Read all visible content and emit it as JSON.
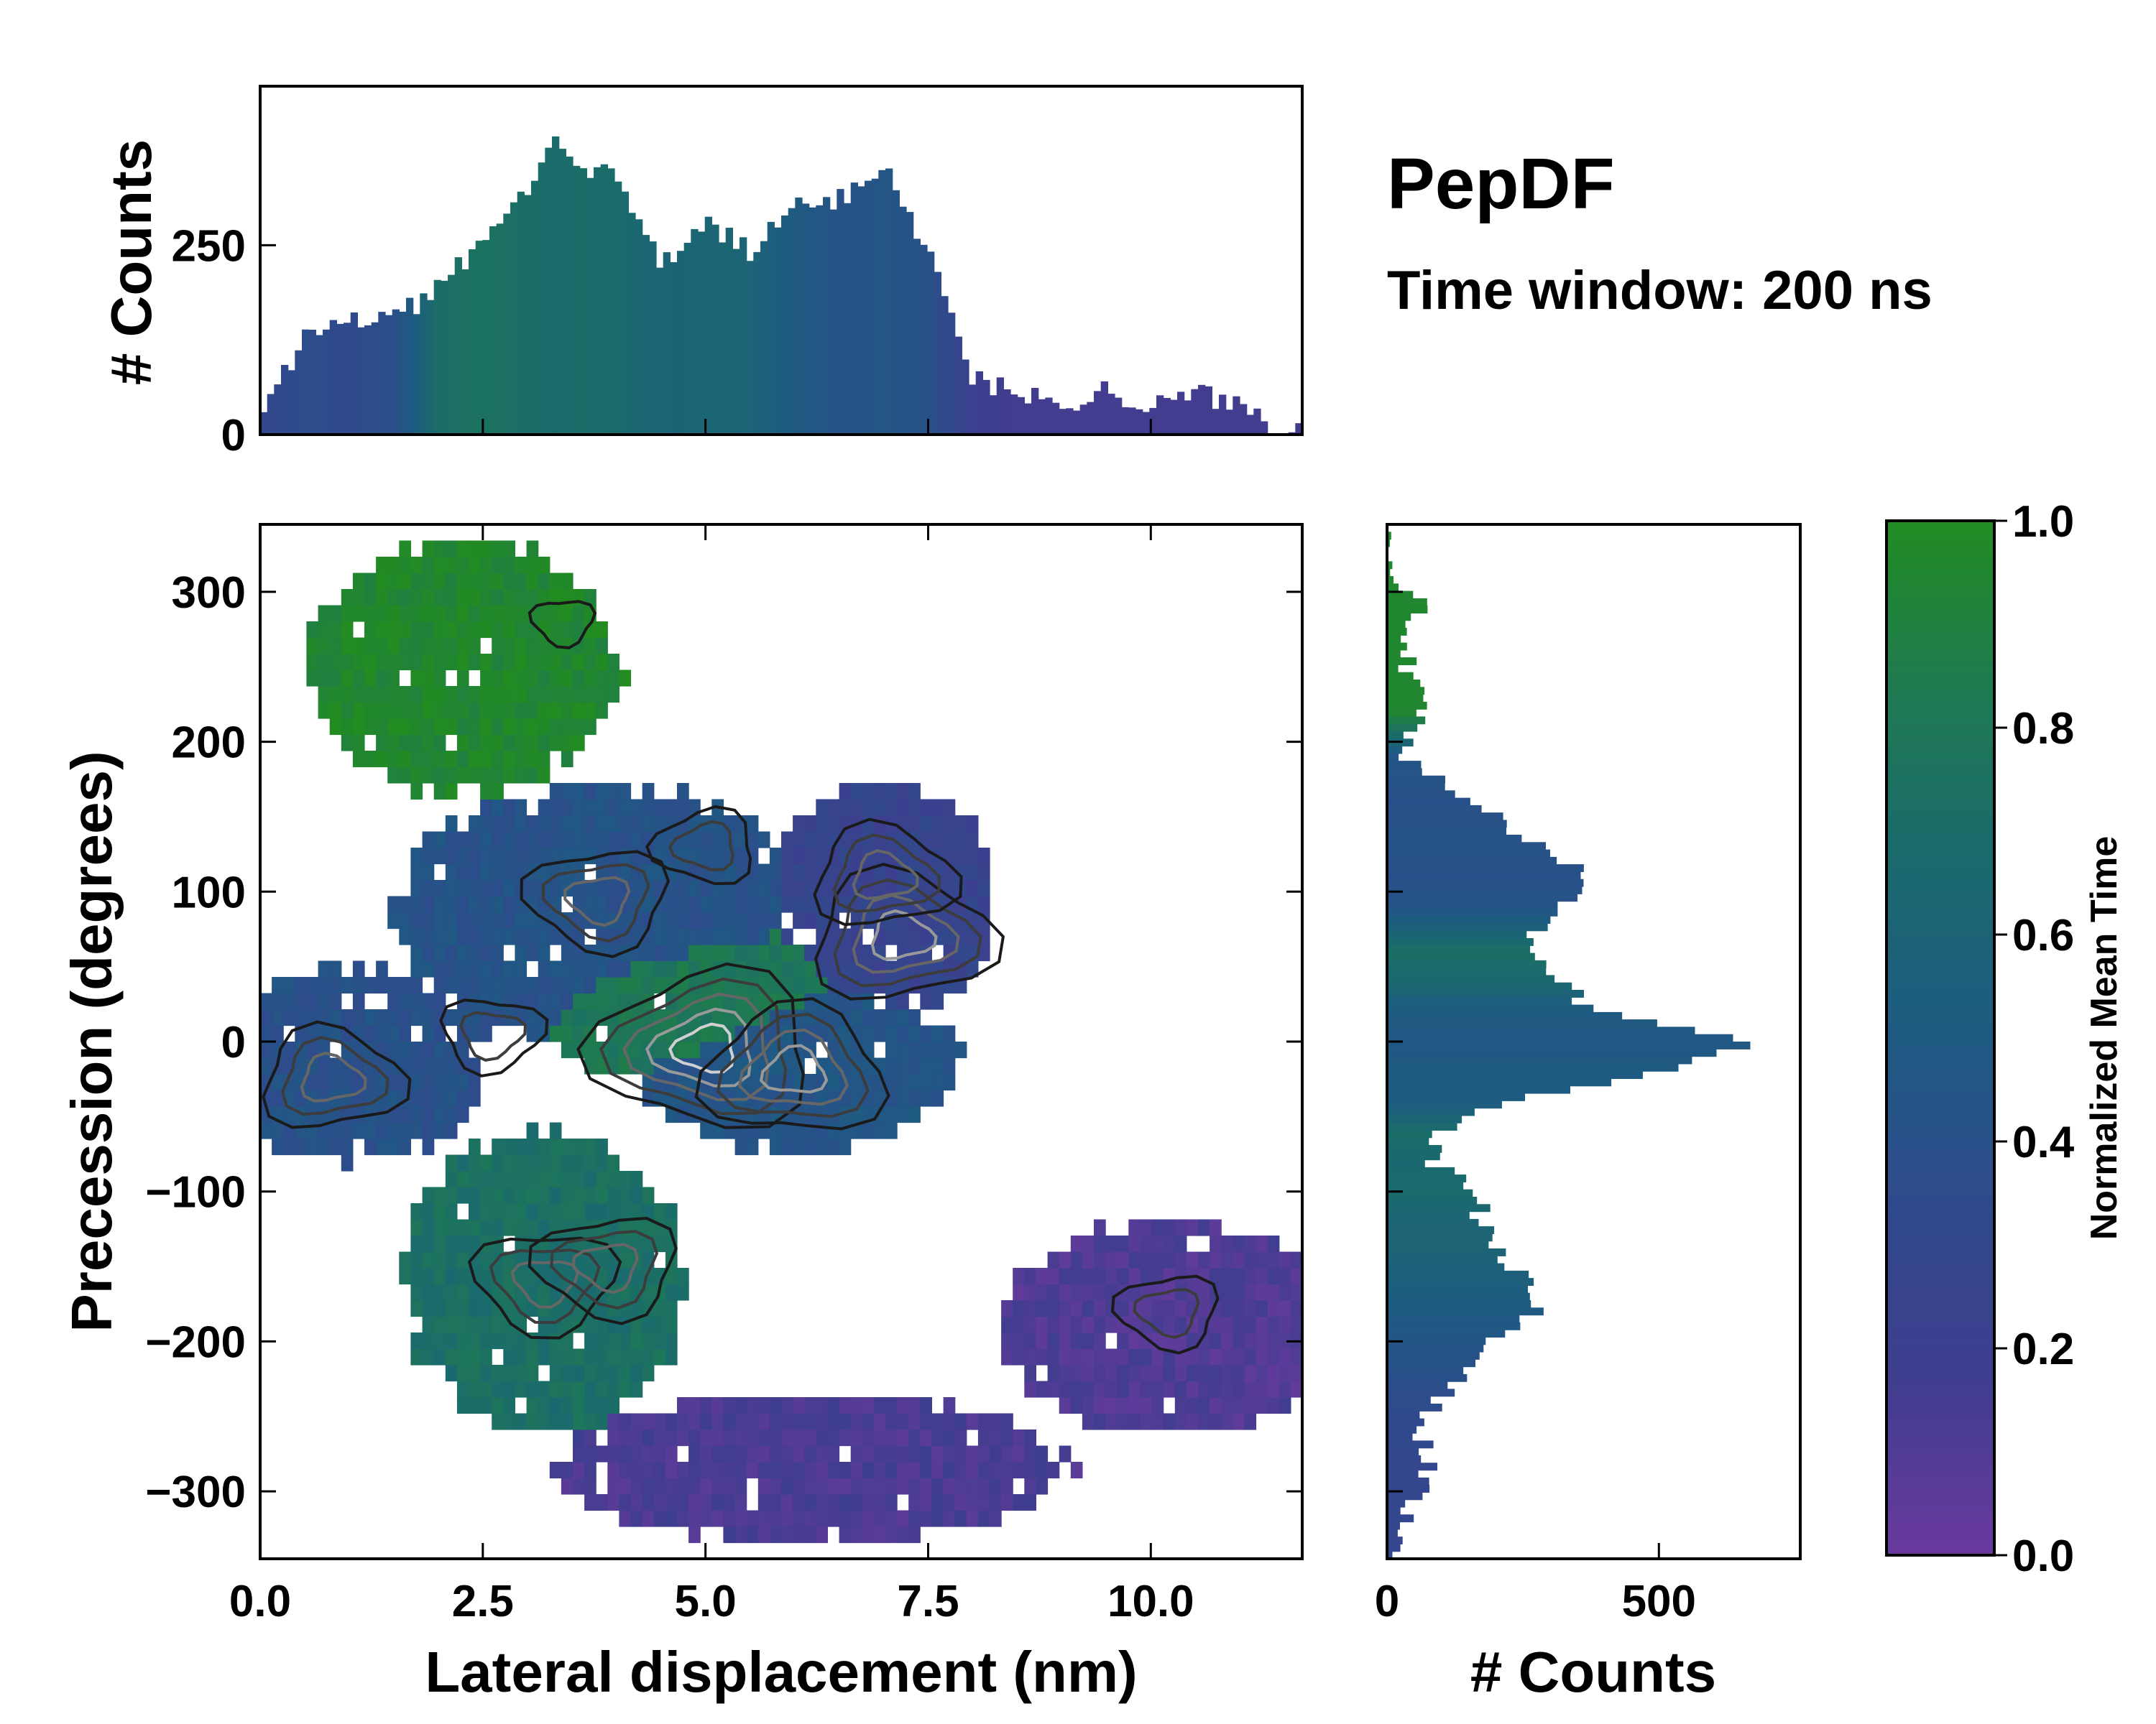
{
  "chart_data": {
    "type": "heatmap",
    "title": "PepDF",
    "subtitle": "Time window: 200 ns",
    "colormap": [
      "#6a3a9e",
      "#3f3d8e",
      "#2f4a8c",
      "#1e5a82",
      "#1a6a6e",
      "#1f7a50",
      "#228b22"
    ],
    "main": {
      "xlabel": "Lateral displacement (nm)",
      "ylabel": "Precession (degrees)",
      "xlim": [
        0,
        11.7
      ],
      "ylim": [
        -345,
        345
      ],
      "xticks": [
        "0.0",
        "2.5",
        "5.0",
        "7.5",
        "10.0"
      ],
      "xtick_values": [
        0,
        2.5,
        5.0,
        7.5,
        10.0
      ],
      "yticks": [
        "300",
        "200",
        "100",
        "0",
        "−100",
        "−200",
        "−300"
      ],
      "ytick_values": [
        300,
        200,
        100,
        0,
        -100,
        -200,
        -300
      ],
      "regions": [
        {
          "name": "top-green",
          "x": 2.3,
          "y": 250,
          "sx": 1.2,
          "sy": 60,
          "value": 0.95
        },
        {
          "name": "upper-purple",
          "x": 7.0,
          "y": 95,
          "sx": 0.9,
          "sy": 55,
          "value": 0.25
        },
        {
          "name": "upper-blue",
          "x": 3.8,
          "y": 85,
          "sx": 1.6,
          "sy": 60,
          "value": 0.42
        },
        {
          "name": "center-green",
          "x": 4.8,
          "y": 30,
          "sx": 1.3,
          "sy": 40,
          "value": 0.8
        },
        {
          "name": "left-blue",
          "x": 1.0,
          "y": -15,
          "sx": 1.1,
          "sy": 45,
          "value": 0.4
        },
        {
          "name": "right-blue-peak",
          "x": 6.0,
          "y": -15,
          "sx": 1.3,
          "sy": 40,
          "value": 0.45
        },
        {
          "name": "lower-green",
          "x": 3.2,
          "y": -160,
          "sx": 1.1,
          "sy": 70,
          "value": 0.72
        },
        {
          "name": "bottom-purple",
          "x": 6.2,
          "y": -285,
          "sx": 2.0,
          "sy": 35,
          "value": 0.12
        },
        {
          "name": "right-purple",
          "x": 10.2,
          "y": -190,
          "sx": 1.3,
          "sy": 50,
          "value": 0.1
        }
      ],
      "density_peaks": [
        {
          "x": 5.0,
          "y": -5,
          "level": 5
        },
        {
          "x": 6.0,
          "y": -20,
          "level": 4
        },
        {
          "x": 7.2,
          "y": 70,
          "level": 4
        },
        {
          "x": 7.0,
          "y": 110,
          "level": 3
        },
        {
          "x": 0.8,
          "y": -25,
          "level": 3
        },
        {
          "x": 3.8,
          "y": 95,
          "level": 3
        },
        {
          "x": 3.2,
          "y": -160,
          "level": 3
        },
        {
          "x": 3.9,
          "y": -150,
          "level": 3
        },
        {
          "x": 2.6,
          "y": 5,
          "level": 2
        },
        {
          "x": 10.2,
          "y": -180,
          "level": 2
        },
        {
          "x": 5.0,
          "y": 130,
          "level": 2
        },
        {
          "x": 3.4,
          "y": 280,
          "level": 1
        }
      ]
    },
    "top_histogram": {
      "ylabel": "# Counts",
      "ylim": [
        0,
        460
      ],
      "yticks": [
        "250",
        "0"
      ],
      "ytick_values": [
        250,
        0
      ],
      "x": [
        0.1,
        0.5,
        1.0,
        1.5,
        2.0,
        2.5,
        3.0,
        3.3,
        3.6,
        4.0,
        4.5,
        5.0,
        5.5,
        6.0,
        6.5,
        7.0,
        7.5,
        8.0,
        8.5,
        9.0,
        9.5,
        10.0,
        10.5,
        11.0,
        11.4
      ],
      "values": [
        40,
        130,
        150,
        155,
        190,
        260,
        320,
        410,
        350,
        340,
        220,
        280,
        240,
        300,
        310,
        360,
        240,
        75,
        55,
        40,
        60,
        35,
        55,
        40,
        10
      ],
      "colors_norm": [
        0.3,
        0.35,
        0.33,
        0.38,
        0.7,
        0.75,
        0.7,
        0.68,
        0.7,
        0.68,
        0.6,
        0.62,
        0.6,
        0.5,
        0.42,
        0.45,
        0.4,
        0.2,
        0.15,
        0.15,
        0.15,
        0.15,
        0.15,
        0.15,
        0.15
      ]
    },
    "side_histogram": {
      "xlabel": "# Counts",
      "xlim": [
        0,
        760
      ],
      "xticks": [
        "0",
        "500"
      ],
      "xtick_values": [
        0,
        500
      ],
      "y": [
        320,
        290,
        260,
        220,
        190,
        160,
        130,
        110,
        90,
        60,
        40,
        20,
        0,
        -20,
        -40,
        -60,
        -80,
        -100,
        -120,
        -140,
        -160,
        -180,
        -200,
        -220,
        -240,
        -260,
        -280,
        -300,
        -320,
        -340
      ],
      "values": [
        10,
        60,
        30,
        60,
        20,
        160,
        280,
        370,
        320,
        250,
        320,
        380,
        690,
        500,
        220,
        90,
        80,
        170,
        170,
        200,
        260,
        270,
        190,
        140,
        90,
        60,
        80,
        60,
        30,
        5
      ],
      "colors_norm": [
        0.95,
        0.95,
        0.95,
        0.95,
        0.45,
        0.4,
        0.42,
        0.4,
        0.43,
        0.72,
        0.65,
        0.5,
        0.48,
        0.5,
        0.5,
        0.7,
        0.65,
        0.68,
        0.6,
        0.6,
        0.55,
        0.5,
        0.45,
        0.4,
        0.35,
        0.32,
        0.28,
        0.28,
        0.28,
        0.28
      ]
    },
    "colorbar": {
      "label": "Normalized Mean Time",
      "ticks": [
        "1.0",
        "0.8",
        "0.6",
        "0.4",
        "0.2",
        "0.0"
      ],
      "tick_values": [
        1.0,
        0.8,
        0.6,
        0.4,
        0.2,
        0.0
      ]
    }
  }
}
